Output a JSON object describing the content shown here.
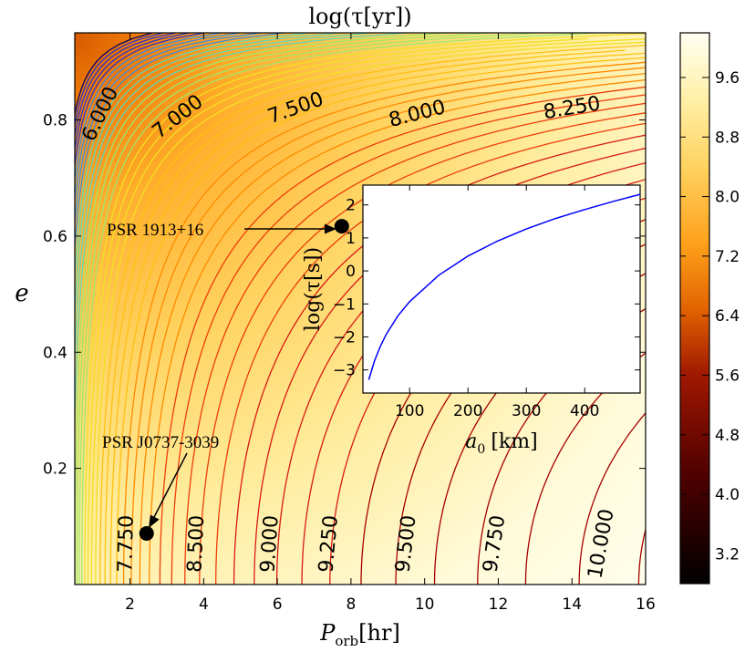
{
  "chart_data": [
    {
      "type": "heatmap",
      "title": "log(τ[yr])",
      "xlabel": "P_orb[hr]",
      "xlabel_base": "P",
      "xlabel_sub": "orb",
      "xlabel_unit": "[hr]",
      "ylabel": "e",
      "xlim": [
        0.5,
        16
      ],
      "ylim": [
        0,
        0.95
      ],
      "x_ticks": [
        2,
        4,
        6,
        8,
        10,
        12,
        14,
        16
      ],
      "y_ticks": [
        0.2,
        0.4,
        0.6,
        0.8
      ],
      "colorbar": {
        "colormap": "afmhot",
        "range": [
          2.8,
          10.2
        ],
        "ticks": [
          "3.2",
          "4.0",
          "4.8",
          "5.6",
          "6.4",
          "7.2",
          "8.0",
          "8.8",
          "9.6"
        ]
      },
      "contour_labels": [
        {
          "text": "6.000",
          "x": 1.2,
          "y": 0.81
        },
        {
          "text": "7.000",
          "x": 3.3,
          "y": 0.805
        },
        {
          "text": "7.500",
          "x": 6.5,
          "y": 0.82
        },
        {
          "text": "8.000",
          "x": 9.8,
          "y": 0.81
        },
        {
          "text": "8.250",
          "x": 14.0,
          "y": 0.82
        },
        {
          "text": "7.750",
          "x": 1.9,
          "y": 0.07
        },
        {
          "text": "8.500",
          "x": 3.8,
          "y": 0.07
        },
        {
          "text": "9.000",
          "x": 5.8,
          "y": 0.07
        },
        {
          "text": "9.250",
          "x": 7.4,
          "y": 0.07
        },
        {
          "text": "9.500",
          "x": 9.5,
          "y": 0.07
        },
        {
          "text": "9.750",
          "x": 11.9,
          "y": 0.07
        },
        {
          "text": "10.000",
          "x": 14.8,
          "y": 0.07
        }
      ],
      "points": [
        {
          "name": "PSR 1913+16",
          "x": 7.75,
          "y": 0.617
        },
        {
          "name": "PSR J0737-3039",
          "x": 2.45,
          "y": 0.088
        }
      ]
    },
    {
      "type": "line",
      "xlabel": "a_0 [km]",
      "xlabel_base": "a",
      "xlabel_sub": "0",
      "xlabel_unit": "[km]",
      "ylabel": "log(τ[s])",
      "xlim": [
        20,
        495
      ],
      "ylim": [
        -3.7,
        2.6
      ],
      "x_ticks": [
        100,
        200,
        300,
        400
      ],
      "y_ticks": [
        -3,
        -2,
        -1,
        0,
        1,
        2
      ],
      "line_color": "#0000ff",
      "series": [
        {
          "x": [
            30,
            40,
            50,
            60,
            80,
            100,
            150,
            200,
            250,
            300,
            350,
            400,
            450,
            495
          ],
          "values": [
            -3.3,
            -2.72,
            -2.28,
            -1.92,
            -1.36,
            -0.93,
            -0.13,
            0.45,
            0.9,
            1.27,
            1.59,
            1.86,
            2.11,
            2.32
          ]
        }
      ]
    }
  ]
}
